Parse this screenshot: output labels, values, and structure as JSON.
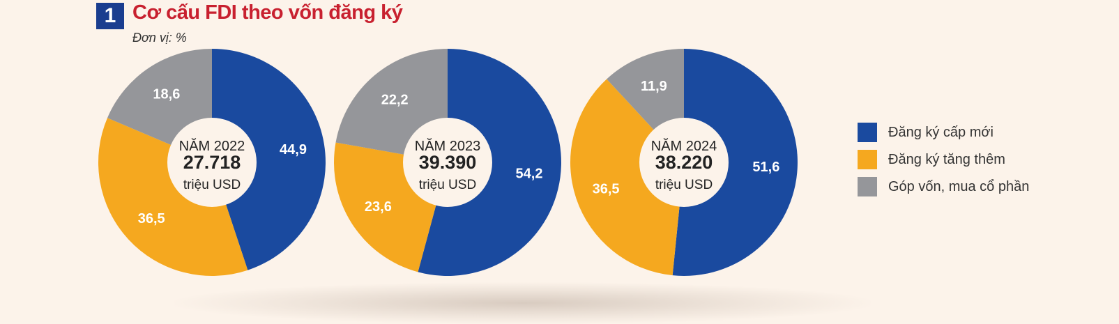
{
  "header": {
    "number": "1",
    "title": "Cơ cấu FDI theo vốn đăng ký",
    "unit": "Đơn vị: %"
  },
  "colors": {
    "blue": "#1a4a9f",
    "orange": "#f5a81f",
    "gray": "#95969a",
    "center": "#fcf3ea"
  },
  "legend": [
    {
      "label": "Đăng ký cấp mới",
      "color": "#1a4a9f"
    },
    {
      "label": "Đăng ký tăng thêm",
      "color": "#f5a81f"
    },
    {
      "label": "Góp vốn, mua cổ phần",
      "color": "#95969a"
    }
  ],
  "chart_data": [
    {
      "type": "pie",
      "center_label": "NĂM 2022",
      "center_value": "27.718",
      "center_unit": "triệu USD",
      "categories": [
        "Đăng ký cấp mới",
        "Đăng ký tăng thêm",
        "Góp vốn, mua cổ phần"
      ],
      "values": [
        44.9,
        36.5,
        18.6
      ],
      "value_labels": [
        "44,9",
        "36,5",
        "18,6"
      ]
    },
    {
      "type": "pie",
      "center_label": "NĂM 2023",
      "center_value": "39.390",
      "center_unit": "triệu USD",
      "categories": [
        "Đăng ký cấp mới",
        "Đăng ký tăng thêm",
        "Góp vốn, mua cổ phần"
      ],
      "values": [
        54.2,
        23.6,
        22.2
      ],
      "value_labels": [
        "54,2",
        "23,6",
        "22,2"
      ]
    },
    {
      "type": "pie",
      "center_label": "NĂM 2024",
      "center_value": "38.220",
      "center_unit": "triệu USD",
      "categories": [
        "Đăng ký cấp mới",
        "Đăng ký tăng thêm",
        "Góp vốn, mua cổ phần"
      ],
      "values": [
        51.6,
        36.5,
        11.9
      ],
      "value_labels": [
        "51,6",
        "36,5",
        "11,9"
      ]
    }
  ]
}
